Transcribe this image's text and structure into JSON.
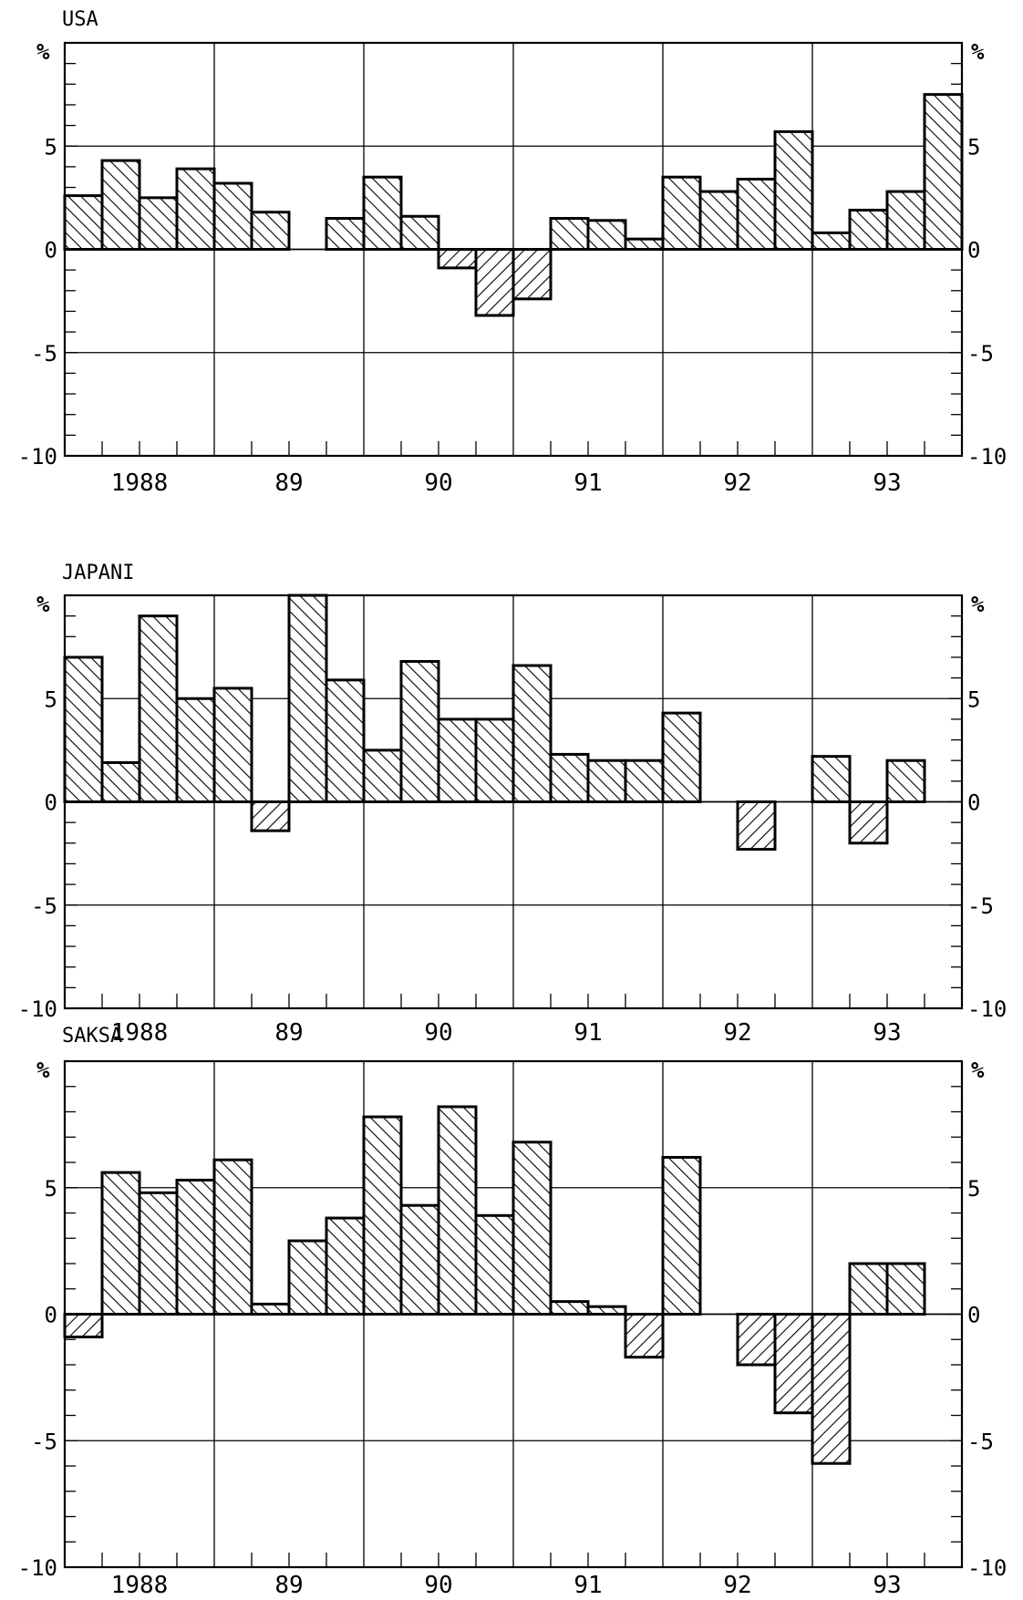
{
  "chart_data": [
    {
      "type": "bar",
      "title": "USA",
      "unit_label": "%",
      "ylim": [
        -10,
        10
      ],
      "yticks": [
        -10,
        -5,
        0,
        5
      ],
      "ytick_labels": [
        "-10",
        "-5",
        "0",
        "5"
      ],
      "year_labels": [
        "1988",
        "89",
        "90",
        "91",
        "92",
        "93"
      ],
      "categories": [
        "1988 Q1",
        "1988 Q2",
        "1988 Q3",
        "1988 Q4",
        "1989 Q1",
        "1989 Q2",
        "1989 Q3",
        "1989 Q4",
        "1990 Q1",
        "1990 Q2",
        "1990 Q3",
        "1990 Q4",
        "1991 Q1",
        "1991 Q2",
        "1991 Q3",
        "1991 Q4",
        "1992 Q1",
        "1992 Q2",
        "1992 Q3",
        "1992 Q4",
        "1993 Q1",
        "1993 Q2",
        "1993 Q3",
        "1993 Q4"
      ],
      "values": [
        2.6,
        4.3,
        2.5,
        3.9,
        3.2,
        1.8,
        0.0,
        1.5,
        3.5,
        1.6,
        -0.9,
        -3.2,
        -2.4,
        1.5,
        1.4,
        0.5,
        3.5,
        2.8,
        3.4,
        5.7,
        0.8,
        1.9,
        2.8,
        7.5
      ],
      "grid": true
    },
    {
      "type": "bar",
      "title": "JAPANI",
      "unit_label": "%",
      "ylim": [
        -10,
        10
      ],
      "yticks": [
        -10,
        -5,
        0,
        5
      ],
      "ytick_labels": [
        "-10",
        "-5",
        "0",
        "5"
      ],
      "year_labels": [
        "1988",
        "89",
        "90",
        "91",
        "92",
        "93"
      ],
      "categories": [
        "1988 Q1",
        "1988 Q2",
        "1988 Q3",
        "1988 Q4",
        "1989 Q1",
        "1989 Q2",
        "1989 Q3",
        "1989 Q4",
        "1990 Q1",
        "1990 Q2",
        "1990 Q3",
        "1990 Q4",
        "1991 Q1",
        "1991 Q2",
        "1991 Q3",
        "1991 Q4",
        "1992 Q1",
        "1992 Q2",
        "1992 Q3",
        "1992 Q4",
        "1993 Q1",
        "1993 Q2",
        "1993 Q3",
        "1993 Q4"
      ],
      "values": [
        7.0,
        1.9,
        9.0,
        5.0,
        5.5,
        -1.4,
        10.0,
        5.9,
        2.5,
        6.8,
        4.0,
        4.0,
        6.6,
        2.3,
        2.0,
        2.0,
        4.3,
        0.0,
        -2.3,
        0.0,
        2.2,
        -2.0,
        2.0,
        0.0
      ],
      "grid": true
    },
    {
      "type": "bar",
      "title": "SAKSA",
      "unit_label": "%",
      "ylim": [
        -10,
        10
      ],
      "yticks": [
        -10,
        -5,
        0,
        5
      ],
      "ytick_labels": [
        "-10",
        "-5",
        "0",
        "5"
      ],
      "year_labels": [
        "1988",
        "89",
        "90",
        "91",
        "92",
        "93"
      ],
      "categories": [
        "1988 Q1",
        "1988 Q2",
        "1988 Q3",
        "1988 Q4",
        "1989 Q1",
        "1989 Q2",
        "1989 Q3",
        "1989 Q4",
        "1990 Q1",
        "1990 Q2",
        "1990 Q3",
        "1990 Q4",
        "1991 Q1",
        "1991 Q2",
        "1991 Q3",
        "1991 Q4",
        "1992 Q1",
        "1992 Q2",
        "1992 Q3",
        "1992 Q4",
        "1993 Q1",
        "1993 Q2",
        "1993 Q3",
        "1993 Q4"
      ],
      "values": [
        -0.9,
        5.6,
        4.8,
        5.3,
        6.1,
        0.4,
        2.9,
        3.8,
        7.8,
        4.3,
        8.2,
        3.9,
        6.8,
        0.5,
        0.3,
        -1.7,
        6.2,
        0.0,
        -2.0,
        -3.9,
        -5.9,
        2.0,
        2.0,
        0.0
      ],
      "grid": true
    }
  ]
}
